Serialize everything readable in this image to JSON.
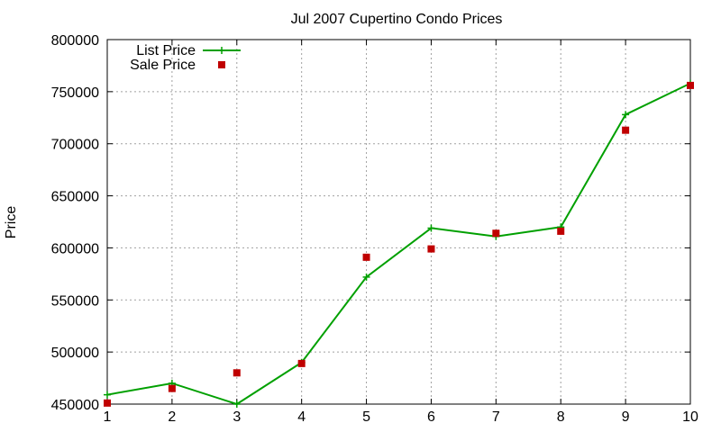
{
  "chart_data": {
    "type": "line",
    "title": "Jul 2007 Cupertino Condo Prices",
    "xlabel": "",
    "ylabel": "Price",
    "x": [
      1,
      2,
      3,
      4,
      5,
      6,
      7,
      8,
      9,
      10
    ],
    "xlim": [
      1,
      10
    ],
    "ylim": [
      450000,
      800000
    ],
    "xticks": [
      "1",
      "2",
      "3",
      "4",
      "5",
      "6",
      "7",
      "8",
      "9",
      "10"
    ],
    "yticks": [
      "450000",
      "500000",
      "550000",
      "600000",
      "650000",
      "700000",
      "750000",
      "800000"
    ],
    "grid": true,
    "legend_position": "top-left",
    "series": [
      {
        "name": "List Price",
        "style": "lines+points",
        "marker": "plus",
        "color": "#00a000",
        "values": [
          459000,
          470000,
          450000,
          490000,
          572000,
          619000,
          611000,
          620000,
          728000,
          758000
        ]
      },
      {
        "name": "Sale Price",
        "style": "points",
        "marker": "square",
        "color": "#c00000",
        "values": [
          451000,
          465000,
          480000,
          489000,
          591000,
          599000,
          614000,
          616000,
          713000,
          756000
        ]
      }
    ]
  }
}
